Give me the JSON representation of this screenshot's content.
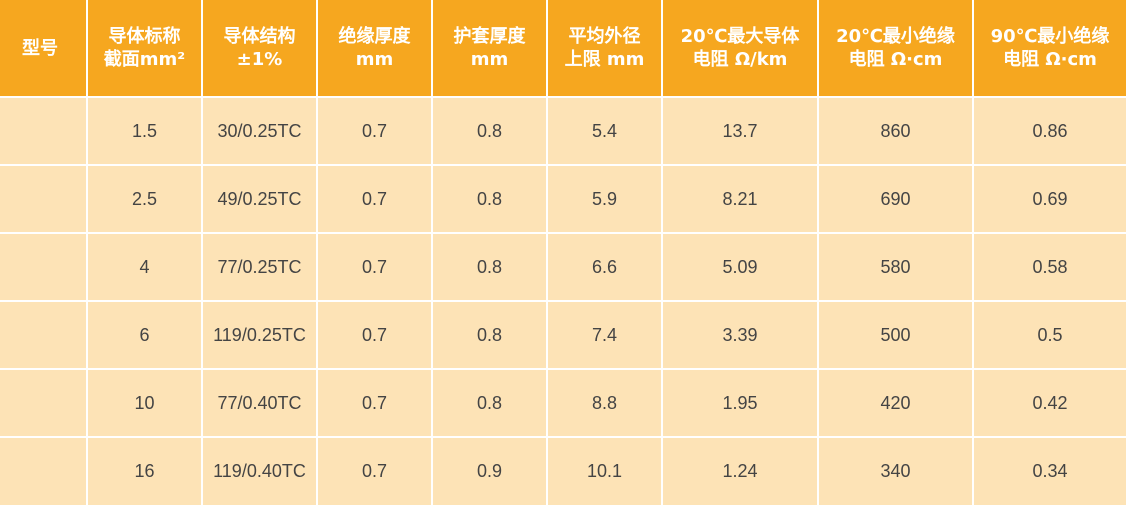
{
  "colors": {
    "header_bg": "#f6a71f",
    "header_text": "#ffffff",
    "row_bg": "#fde3b6",
    "cell_text": "#444444",
    "grid": "#ffffff"
  },
  "table": {
    "headers": [
      [
        "型号"
      ],
      [
        "导体标称",
        "截面mm²"
      ],
      [
        "导体结构",
        "±1%"
      ],
      [
        "绝缘厚度",
        "mm"
      ],
      [
        "护套厚度",
        "mm"
      ],
      [
        "平均外径",
        "上限 mm"
      ],
      [
        "20℃最大导体",
        "电阻 Ω/km"
      ],
      [
        "20℃最小绝缘",
        "电阻 Ω·cm"
      ],
      [
        "90℃最小绝缘",
        "电阻 Ω·cm"
      ]
    ],
    "rows": [
      [
        "",
        "1.5",
        "30/0.25TC",
        "0.7",
        "0.8",
        "5.4",
        "13.7",
        "860",
        "0.86"
      ],
      [
        "",
        "2.5",
        "49/0.25TC",
        "0.7",
        "0.8",
        "5.9",
        "8.21",
        "690",
        "0.69"
      ],
      [
        "",
        "4",
        "77/0.25TC",
        "0.7",
        "0.8",
        "6.6",
        "5.09",
        "580",
        "0.58"
      ],
      [
        "",
        "6",
        "119/0.25TC",
        "0.7",
        "0.8",
        "7.4",
        "3.39",
        "500",
        "0.5"
      ],
      [
        "",
        "10",
        "77/0.40TC",
        "0.7",
        "0.8",
        "8.8",
        "1.95",
        "420",
        "0.42"
      ],
      [
        "",
        "16",
        "119/0.40TC",
        "0.7",
        "0.9",
        "10.1",
        "1.24",
        "340",
        "0.34"
      ]
    ]
  }
}
